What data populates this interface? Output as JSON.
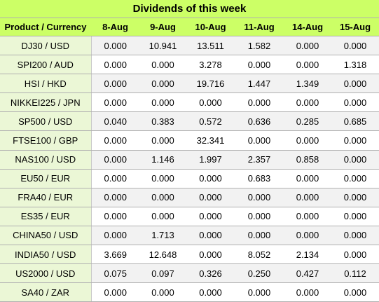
{
  "title": "Dividends of this week",
  "header": {
    "product": "Product / Currency",
    "dates": [
      "8-Aug",
      "9-Aug",
      "10-Aug",
      "11-Aug",
      "14-Aug",
      "15-Aug"
    ]
  },
  "rows": [
    {
      "product": "DJ30 / USD",
      "values": [
        "0.000",
        "10.941",
        "13.511",
        "1.582",
        "0.000",
        "0.000"
      ]
    },
    {
      "product": "SPI200 / AUD",
      "values": [
        "0.000",
        "0.000",
        "3.278",
        "0.000",
        "0.000",
        "1.318"
      ]
    },
    {
      "product": "HSI / HKD",
      "values": [
        "0.000",
        "0.000",
        "19.716",
        "1.447",
        "1.349",
        "0.000"
      ]
    },
    {
      "product": "NIKKEI225 / JPN",
      "values": [
        "0.000",
        "0.000",
        "0.000",
        "0.000",
        "0.000",
        "0.000"
      ]
    },
    {
      "product": "SP500 / USD",
      "values": [
        "0.040",
        "0.383",
        "0.572",
        "0.636",
        "0.285",
        "0.685"
      ]
    },
    {
      "product": "FTSE100 / GBP",
      "values": [
        "0.000",
        "0.000",
        "32.341",
        "0.000",
        "0.000",
        "0.000"
      ]
    },
    {
      "product": "NAS100 / USD",
      "values": [
        "0.000",
        "1.146",
        "1.997",
        "2.357",
        "0.858",
        "0.000"
      ]
    },
    {
      "product": "EU50 / EUR",
      "values": [
        "0.000",
        "0.000",
        "0.000",
        "0.683",
        "0.000",
        "0.000"
      ]
    },
    {
      "product": "FRA40 / EUR",
      "values": [
        "0.000",
        "0.000",
        "0.000",
        "0.000",
        "0.000",
        "0.000"
      ]
    },
    {
      "product": "ES35 / EUR",
      "values": [
        "0.000",
        "0.000",
        "0.000",
        "0.000",
        "0.000",
        "0.000"
      ]
    },
    {
      "product": "CHINA50 / USD",
      "values": [
        "0.000",
        "1.713",
        "0.000",
        "0.000",
        "0.000",
        "0.000"
      ]
    },
    {
      "product": "INDIA50 / USD",
      "values": [
        "3.669",
        "12.648",
        "0.000",
        "8.052",
        "2.134",
        "0.000"
      ]
    },
    {
      "product": "US2000 / USD",
      "values": [
        "0.075",
        "0.097",
        "0.326",
        "0.250",
        "0.427",
        "0.112"
      ]
    },
    {
      "product": "SA40 / ZAR",
      "values": [
        "0.000",
        "0.000",
        "0.000",
        "0.000",
        "0.000",
        "0.000"
      ]
    }
  ],
  "colors": {
    "header_bg": "#ccff66",
    "label_bg": "#ebf7d6",
    "alt_row_bg": "#f2f2f2"
  }
}
